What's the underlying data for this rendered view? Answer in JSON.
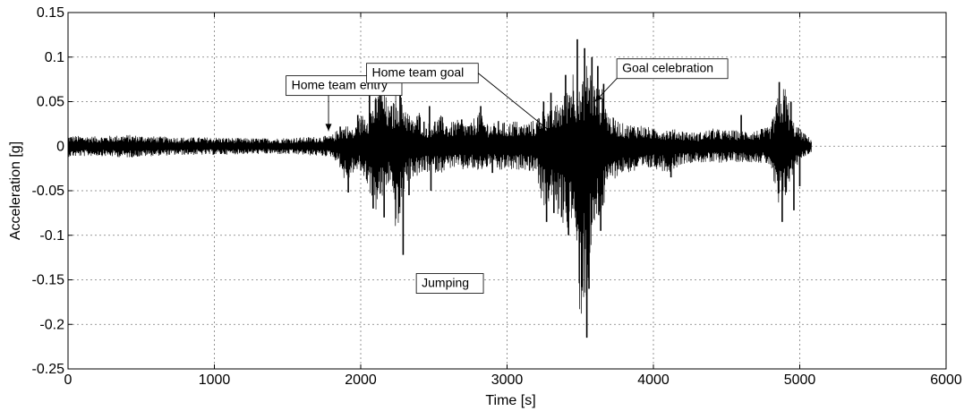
{
  "chart_data": {
    "type": "line",
    "title": "",
    "xlabel": "Time  [s]",
    "ylabel": "Acceleration [g]",
    "xlim": [
      0,
      6000
    ],
    "ylim": [
      -0.25,
      0.15
    ],
    "grid": true,
    "x_ticks": [
      0,
      1000,
      2000,
      3000,
      4000,
      5000,
      6000
    ],
    "x_tick_labels": [
      "0",
      "1000",
      "2000",
      "3000",
      "4000",
      "5000",
      "6000"
    ],
    "y_ticks": [
      0.15,
      0.1,
      0.05,
      0,
      -0.05,
      -0.1,
      -0.15,
      -0.2,
      -0.25
    ],
    "y_tick_labels": [
      "0.15",
      "0.1",
      "0.05",
      "0",
      "-0.05",
      "-0.1",
      "-0.15",
      "-0.2",
      "-0.25"
    ],
    "series": [
      {
        "color": "#000000",
        "x_range": [
          0,
          5080
        ],
        "envelope": {
          "t": [
            0,
            200,
            400,
            600,
            800,
            1000,
            1200,
            1400,
            1600,
            1800,
            1850,
            1900,
            1950,
            2000,
            2050,
            2100,
            2150,
            2200,
            2250,
            2300,
            2350,
            2400,
            2450,
            2500,
            2550,
            2600,
            2650,
            2700,
            2750,
            2800,
            2850,
            2900,
            2950,
            3000,
            3050,
            3100,
            3150,
            3200,
            3250,
            3300,
            3350,
            3400,
            3450,
            3500,
            3550,
            3600,
            3650,
            3700,
            3750,
            3800,
            3900,
            4000,
            4100,
            4200,
            4300,
            4400,
            4500,
            4600,
            4700,
            4800,
            4850,
            4900,
            4950,
            5000,
            5050,
            5080
          ],
          "upper": [
            0.012,
            0.011,
            0.013,
            0.011,
            0.01,
            0.01,
            0.009,
            0.009,
            0.01,
            0.012,
            0.02,
            0.025,
            0.018,
            0.035,
            0.04,
            0.055,
            0.07,
            0.04,
            0.065,
            0.05,
            0.03,
            0.04,
            0.025,
            0.03,
            0.035,
            0.025,
            0.03,
            0.028,
            0.025,
            0.04,
            0.03,
            0.025,
            0.03,
            0.025,
            0.03,
            0.025,
            0.028,
            0.03,
            0.05,
            0.04,
            0.05,
            0.06,
            0.09,
            0.06,
            0.1,
            0.07,
            0.065,
            0.035,
            0.03,
            0.025,
            0.025,
            0.02,
            0.02,
            0.018,
            0.015,
            0.02,
            0.018,
            0.018,
            0.018,
            0.022,
            0.055,
            0.07,
            0.03,
            0.02,
            0.012,
            0.008
          ],
          "lower": [
            -0.012,
            -0.011,
            -0.013,
            -0.011,
            -0.01,
            -0.01,
            -0.009,
            -0.009,
            -0.01,
            -0.012,
            -0.02,
            -0.045,
            -0.03,
            -0.03,
            -0.045,
            -0.075,
            -0.06,
            -0.04,
            -0.11,
            -0.045,
            -0.035,
            -0.035,
            -0.03,
            -0.03,
            -0.03,
            -0.025,
            -0.025,
            -0.028,
            -0.025,
            -0.03,
            -0.025,
            -0.025,
            -0.03,
            -0.025,
            -0.03,
            -0.025,
            -0.028,
            -0.03,
            -0.075,
            -0.06,
            -0.08,
            -0.095,
            -0.085,
            -0.2,
            -0.17,
            -0.09,
            -0.08,
            -0.04,
            -0.035,
            -0.03,
            -0.03,
            -0.025,
            -0.03,
            -0.02,
            -0.018,
            -0.02,
            -0.018,
            -0.018,
            -0.018,
            -0.022,
            -0.075,
            -0.06,
            -0.035,
            -0.015,
            -0.01,
            -0.008
          ]
        },
        "spikes": [
          {
            "x": 1860,
            "y": 0.022
          },
          {
            "x": 1915,
            "y": -0.052
          },
          {
            "x": 1980,
            "y": 0.035
          },
          {
            "x": 2060,
            "y": 0.068
          },
          {
            "x": 2085,
            "y": -0.07
          },
          {
            "x": 2130,
            "y": 0.072
          },
          {
            "x": 2160,
            "y": -0.08
          },
          {
            "x": 2210,
            "y": 0.045
          },
          {
            "x": 2270,
            "y": 0.078
          },
          {
            "x": 2290,
            "y": -0.122
          },
          {
            "x": 2330,
            "y": -0.055
          },
          {
            "x": 2470,
            "y": 0.045
          },
          {
            "x": 2480,
            "y": -0.05
          },
          {
            "x": 2690,
            "y": 0.03
          },
          {
            "x": 2820,
            "y": 0.045
          },
          {
            "x": 2900,
            "y": -0.03
          },
          {
            "x": 3250,
            "y": 0.05
          },
          {
            "x": 3270,
            "y": -0.085
          },
          {
            "x": 3300,
            "y": 0.06
          },
          {
            "x": 3320,
            "y": -0.075
          },
          {
            "x": 3400,
            "y": 0.08
          },
          {
            "x": 3420,
            "y": -0.1
          },
          {
            "x": 3480,
            "y": 0.12
          },
          {
            "x": 3500,
            "y": -0.08
          },
          {
            "x": 3530,
            "y": 0.11
          },
          {
            "x": 3545,
            "y": -0.215
          },
          {
            "x": 3560,
            "y": -0.16
          },
          {
            "x": 3580,
            "y": 0.1
          },
          {
            "x": 3620,
            "y": 0.09
          },
          {
            "x": 3640,
            "y": -0.095
          },
          {
            "x": 3660,
            "y": 0.07
          },
          {
            "x": 4120,
            "y": -0.035
          },
          {
            "x": 4600,
            "y": 0.035
          },
          {
            "x": 4860,
            "y": 0.072
          },
          {
            "x": 4880,
            "y": -0.085
          },
          {
            "x": 4940,
            "y": 0.05
          },
          {
            "x": 4960,
            "y": -0.072
          },
          {
            "x": 5000,
            "y": -0.045
          }
        ]
      }
    ],
    "annotations": [
      {
        "text": "Home team entry",
        "x": 1490,
        "y": 0.079,
        "arrow_to": [
          1780,
          0.017
        ]
      },
      {
        "text": "Home team goal",
        "x": 2040,
        "y": 0.093,
        "arrow_to": [
          3330,
          0.012
        ]
      },
      {
        "text": "Goal celebration",
        "x": 3750,
        "y": 0.098,
        "arrow_to": [
          3600,
          0.05
        ]
      },
      {
        "text": "Jumping",
        "x": 2380,
        "y": -0.143,
        "arrow_to": null
      }
    ]
  }
}
